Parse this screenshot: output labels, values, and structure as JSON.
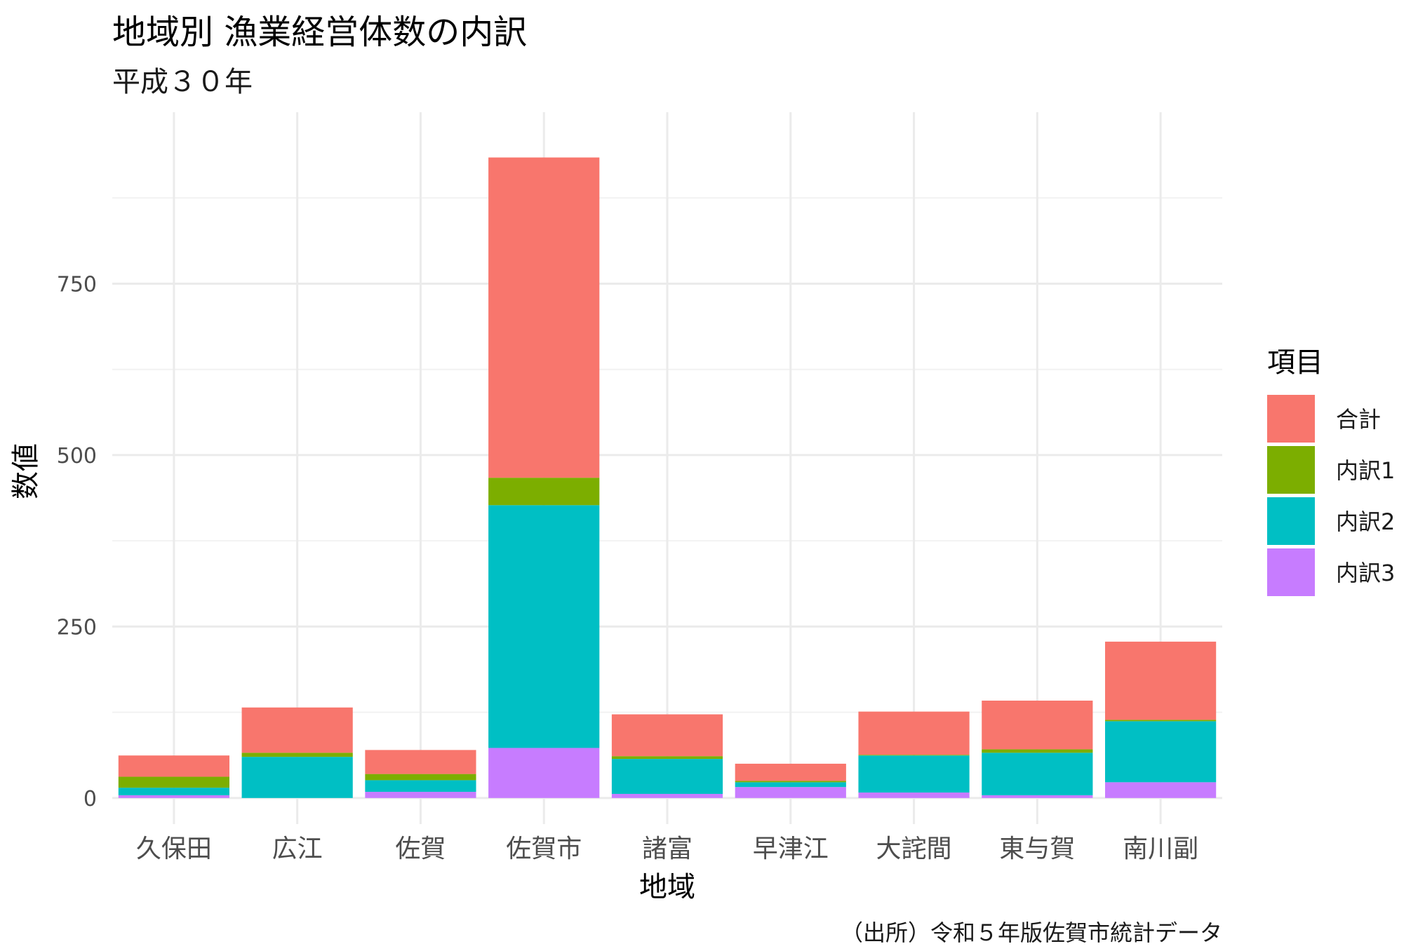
{
  "chart_data": {
    "type": "bar",
    "stacked": true,
    "title": "地域別 漁業経営体数の内訳",
    "subtitle": "平成３０年",
    "xlabel": "地域",
    "ylabel": "数値",
    "caption": "（出所）令和５年版佐賀市統計データ",
    "legend_title": "項目",
    "legend_position": "right",
    "grid": true,
    "ylim": [
      -38,
      1000
    ],
    "yticks": [
      0,
      250,
      500,
      750
    ],
    "categories": [
      "久保田",
      "広江",
      "佐賀",
      "佐賀市",
      "諸富",
      "早津江",
      "大詫間",
      "東与賀",
      "南川副"
    ],
    "series": [
      {
        "name": "合計",
        "color": "#F8766D",
        "values": [
          31,
          66,
          35,
          467,
          61,
          25,
          63,
          71,
          114
        ]
      },
      {
        "name": "内訳1",
        "color": "#7CAE00",
        "values": [
          16,
          6,
          9,
          40,
          4,
          2,
          1,
          5,
          2
        ]
      },
      {
        "name": "内訳2",
        "color": "#00BFC4",
        "values": [
          11,
          60,
          17,
          354,
          51,
          7,
          54,
          62,
          89
        ]
      },
      {
        "name": "内訳3",
        "color": "#C77CFF",
        "values": [
          4,
          0,
          9,
          73,
          6,
          16,
          8,
          4,
          23
        ]
      }
    ]
  }
}
